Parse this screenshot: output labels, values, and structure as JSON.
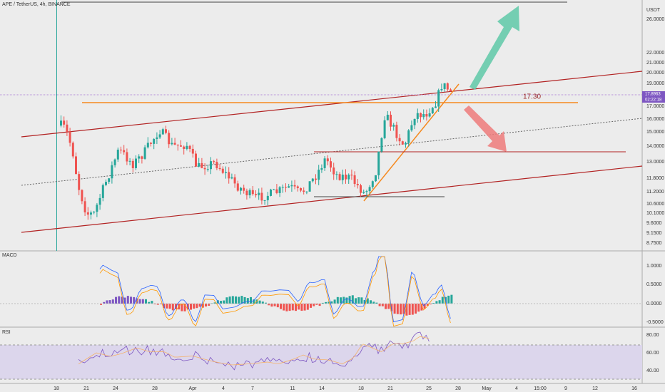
{
  "header": {
    "symbol": "APE / TetherUS, 4h, BINANCE"
  },
  "price_axis": {
    "unit": "USDT",
    "labels": [
      "26.0000",
      "22.0000",
      "21.0000",
      "20.0000",
      "19.0000",
      "17.0000",
      "16.0000",
      "15.0000",
      "14.0000",
      "13.0000",
      "11.8000",
      "11.2000",
      "10.6000",
      "10.1000",
      "9.6000",
      "9.1500",
      "8.7500"
    ],
    "last_price": "17.8963",
    "countdown": "02:22:18"
  },
  "annotation": "17.30",
  "macd": {
    "title": "MACD",
    "labels": [
      "1.0000",
      "0.5000",
      "0.0000",
      "-0.5000"
    ]
  },
  "rsi": {
    "title": "RSI",
    "labels": [
      "80.00",
      "60.00",
      "40.00"
    ]
  },
  "time_axis": [
    "18",
    "21",
    "24",
    "28",
    "Apr",
    "4",
    "7",
    "11",
    "14",
    "18",
    "21",
    "25",
    "28",
    "May",
    "4",
    "15:00",
    "9",
    "12",
    "16"
  ]
}
